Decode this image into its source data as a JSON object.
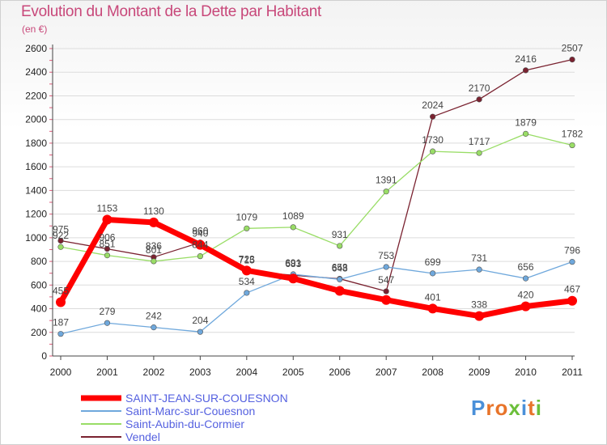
{
  "title": "Evolution du Montant de la Dette par Habitant",
  "subtitle": "(en €)",
  "logo": "Proxiti",
  "chart_data": {
    "type": "line",
    "title": "Evolution du Montant de la Dette par Habitant",
    "subtitle": "(en €)",
    "x": [
      "2000",
      "2001",
      "2002",
      "2003",
      "2004",
      "2005",
      "2006",
      "2007",
      "2008",
      "2009",
      "2010",
      "2011"
    ],
    "yticks": [
      0,
      200,
      400,
      600,
      800,
      1000,
      1200,
      1400,
      1600,
      1800,
      2000,
      2200,
      2400,
      2600
    ],
    "ylim": [
      0,
      2600
    ],
    "grid": true,
    "legend_position": "bottom-left",
    "series": [
      {
        "name": "SAINT-JEAN-SUR-COUESNON",
        "color": "#ff0000",
        "values": [
          455,
          1153,
          1130,
          940,
          723,
          655,
          551,
          474,
          401,
          338,
          420,
          467
        ],
        "labels": [
          "455",
          "1153",
          "1130",
          "940",
          "723",
          "",
          "",
          "",
          "401",
          "338",
          "420",
          "467"
        ]
      },
      {
        "name": "Saint-Marc-sur-Couesnon",
        "color": "#6fa8dc",
        "values": [
          187,
          279,
          242,
          204,
          534,
          691,
          648,
          753,
          699,
          731,
          656,
          796
        ],
        "labels": [
          "187",
          "279",
          "242",
          "204",
          "534",
          "691",
          "648",
          "753",
          "699",
          "731",
          "656",
          "796"
        ]
      },
      {
        "name": "Saint-Aubin-du-Cormier",
        "color": "#99dd66",
        "values": [
          922,
          851,
          801,
          844,
          1079,
          1089,
          931,
          1391,
          1730,
          1717,
          1879,
          1782
        ],
        "labels": [
          "922",
          "851",
          "801",
          "844",
          "1079",
          "1089",
          "931",
          "1391",
          "1730",
          "1717",
          "1879",
          "1782"
        ]
      },
      {
        "name": "Vendel",
        "color": "#7a2230",
        "values": [
          975,
          906,
          836,
          960,
          715,
          683,
          653,
          547,
          2024,
          2170,
          2416,
          2507
        ],
        "labels": [
          "975",
          "906",
          "836",
          "960",
          "715",
          "683",
          "653",
          "547",
          "2024",
          "2170",
          "2416",
          "2507"
        ]
      }
    ]
  }
}
